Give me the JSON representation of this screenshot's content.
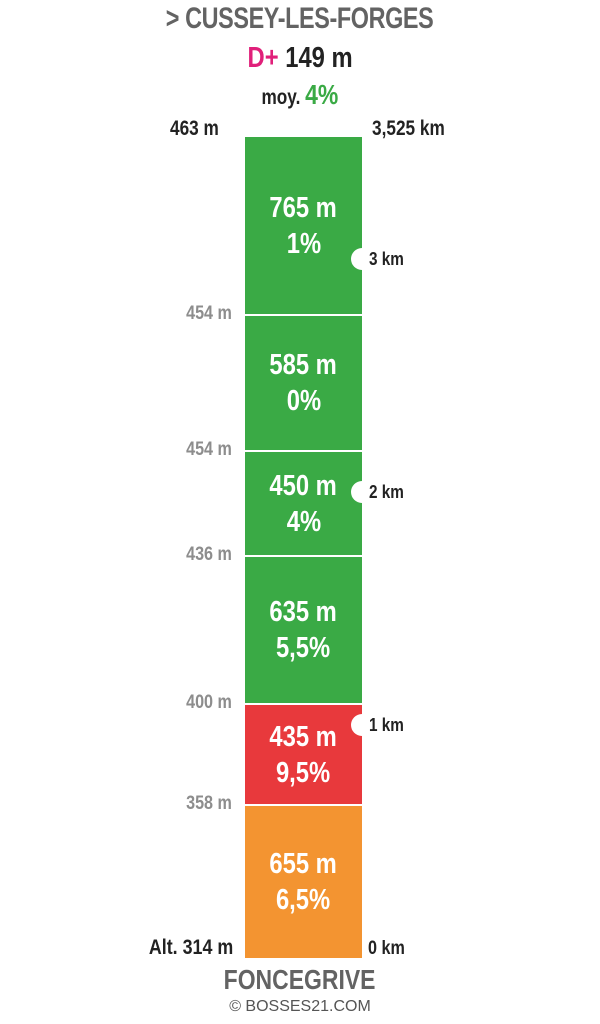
{
  "header": {
    "title": "> CUSSEY-LES-FORGES",
    "dplus_label": "D+",
    "dplus_value": "149 m",
    "avg_label": "moy.",
    "avg_value": "4%"
  },
  "top": {
    "altitude": "463 m",
    "distance": "3,525 km"
  },
  "footer": {
    "base_altitude": "Alt. 314 m",
    "base_distance": "0 km",
    "start_name": "FONCEGRIVE",
    "copyright": "© BOSSES21.COM"
  },
  "colors": {
    "green": "#3aaa45",
    "red": "#e8393c",
    "orange": "#f39431",
    "pink": "#e0207a"
  },
  "chart_data": {
    "type": "bar",
    "orientation": "vertical-stacked-profile",
    "segments": [
      {
        "length_label": "655 m",
        "grade_label": "6,5%",
        "length_m": 655,
        "grade_pct": 6.5,
        "color": "#f39431",
        "start_alt_label": "Alt. 314 m",
        "start_alt_m": 314
      },
      {
        "length_label": "435 m",
        "grade_label": "9,5%",
        "length_m": 435,
        "grade_pct": 9.5,
        "color": "#e8393c",
        "start_alt_label": "358 m",
        "start_alt_m": 358
      },
      {
        "length_label": "635 m",
        "grade_label": "5,5%",
        "length_m": 635,
        "grade_pct": 5.5,
        "color": "#3aaa45",
        "start_alt_label": "400 m",
        "start_alt_m": 400
      },
      {
        "length_label": "450 m",
        "grade_label": "4%",
        "length_m": 450,
        "grade_pct": 4,
        "color": "#3aaa45",
        "start_alt_label": "436 m",
        "start_alt_m": 436
      },
      {
        "length_label": "585 m",
        "grade_label": "0%",
        "length_m": 585,
        "grade_pct": 0,
        "color": "#3aaa45",
        "start_alt_label": "454 m",
        "start_alt_m": 454
      },
      {
        "length_label": "765 m",
        "grade_label": "1%",
        "length_m": 765,
        "grade_pct": 1,
        "color": "#3aaa45",
        "start_alt_label": "454 m",
        "start_alt_m": 454
      }
    ],
    "km_markers": [
      {
        "label": "1 km",
        "km": 1
      },
      {
        "label": "2 km",
        "km": 2
      },
      {
        "label": "3 km",
        "km": 3
      }
    ],
    "total_km": 3.525,
    "end_alt_m": 463
  }
}
